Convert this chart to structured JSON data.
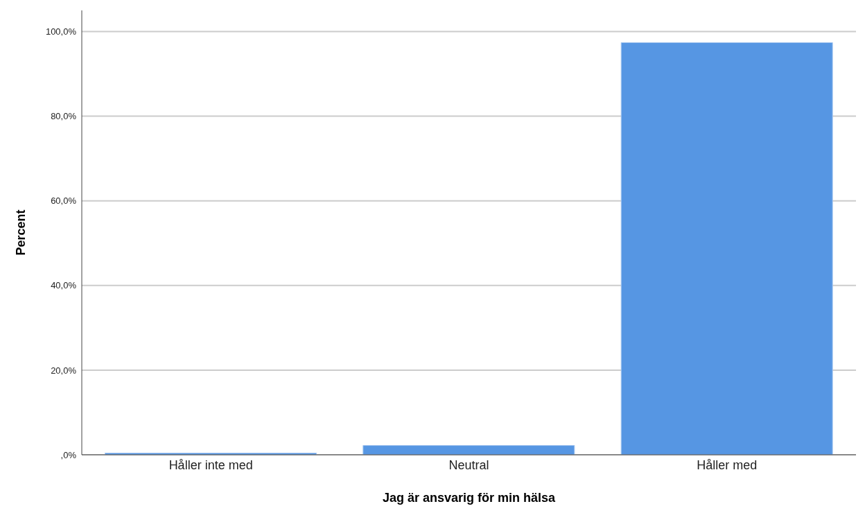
{
  "chart_data": {
    "type": "bar",
    "xlabel": "Jag är ansvarig för min hälsa",
    "ylabel": "Percent",
    "categories": [
      "Håller inte med",
      "Neutral",
      "Håller med"
    ],
    "values": [
      0.4,
      2.2,
      97.4
    ],
    "color": "#5696e3",
    "ylim": [
      0,
      105
    ],
    "yticks": [
      {
        "value": 0,
        "label": ",0%"
      },
      {
        "value": 20,
        "label": "20,0%"
      },
      {
        "value": 40,
        "label": "40,0%"
      },
      {
        "value": 60,
        "label": "60,0%"
      },
      {
        "value": 80,
        "label": "80,0%"
      },
      {
        "value": 100,
        "label": "100,0%"
      }
    ],
    "grid": "y"
  }
}
